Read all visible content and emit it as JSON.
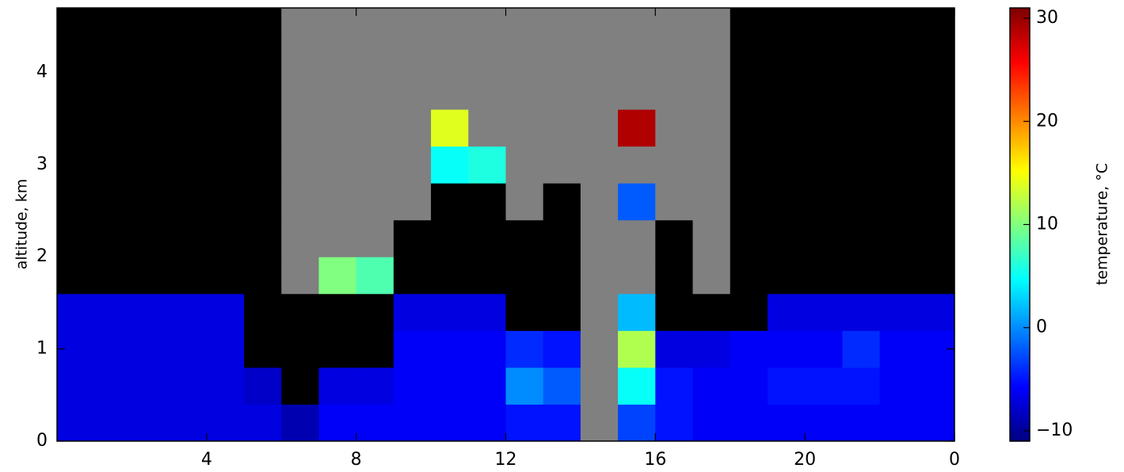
{
  "chart_data": {
    "type": "heatmap",
    "ylabel": "altitude, km",
    "xlim": [
      0,
      24
    ],
    "ylim": [
      0,
      4.7
    ],
    "xticks": [
      4,
      8,
      12,
      16,
      20,
      {
        "value": 24,
        "label": "0"
      }
    ],
    "yticks": [
      0,
      1,
      2,
      3,
      4
    ],
    "x_edges": [
      0,
      1,
      2,
      3,
      4,
      5,
      6,
      7,
      8,
      9,
      10,
      11,
      12,
      13,
      14,
      15,
      16,
      17,
      18,
      19,
      20,
      21,
      22,
      23,
      24
    ],
    "y_edges": [
      0,
      0.4,
      0.8,
      1.2,
      1.6,
      2.0,
      2.4,
      2.8,
      3.2,
      3.6,
      4.0,
      4.4,
      4.7
    ],
    "z": [
      [
        -7,
        -7,
        -7,
        -7,
        -7,
        -7,
        -9,
        -6,
        -6,
        -6,
        -6,
        -6,
        -5,
        -5,
        null,
        -3,
        -5,
        -6,
        -6,
        -6,
        -6,
        -6,
        -6,
        -6
      ],
      [
        -7,
        -7,
        -7,
        -7,
        -7,
        -8,
        -20,
        -7,
        -7,
        -6,
        -6,
        -6,
        0,
        -2,
        null,
        5,
        -5,
        -6,
        -6,
        -5,
        -5,
        -5,
        -6,
        -6
      ],
      [
        -7,
        -7,
        -7,
        -7,
        -7,
        -20,
        -20,
        -20,
        -20,
        -6,
        -6,
        -6,
        -4,
        -5,
        null,
        12,
        -7,
        -7,
        -6,
        -6,
        -6,
        -4,
        -6,
        -6
      ],
      [
        -7,
        -7,
        -7,
        -7,
        -7,
        -20,
        -20,
        -20,
        -20,
        -7,
        -7,
        -7,
        -20,
        -20,
        null,
        2,
        -20,
        -20,
        -20,
        -7,
        -7,
        -7,
        -7,
        -7
      ],
      [
        -20,
        -20,
        -20,
        -20,
        -20,
        -20,
        null,
        10,
        8,
        -20,
        -20,
        -20,
        -20,
        -20,
        null,
        null,
        -20,
        null,
        -20,
        -20,
        -20,
        -20,
        -20,
        -20
      ],
      [
        -20,
        -20,
        -20,
        -20,
        -20,
        -20,
        null,
        null,
        null,
        -20,
        -20,
        -20,
        -20,
        -20,
        null,
        null,
        -20,
        null,
        -20,
        -20,
        -20,
        -20,
        -20,
        -20
      ],
      [
        -20,
        -20,
        -20,
        -20,
        -20,
        -20,
        null,
        null,
        null,
        null,
        -20,
        -20,
        null,
        -20,
        null,
        -2,
        null,
        null,
        -20,
        -20,
        -20,
        -20,
        -20,
        -20
      ],
      [
        -20,
        -20,
        -20,
        -20,
        -20,
        -20,
        null,
        null,
        null,
        null,
        5,
        6,
        null,
        null,
        null,
        null,
        null,
        null,
        -20,
        -20,
        -20,
        -20,
        -20,
        -20
      ],
      [
        -20,
        -20,
        -20,
        -20,
        -20,
        -20,
        null,
        null,
        null,
        null,
        14,
        null,
        null,
        null,
        null,
        29,
        null,
        null,
        -20,
        -20,
        -20,
        -20,
        -20,
        -20
      ],
      [
        -20,
        -20,
        -20,
        -20,
        -20,
        -20,
        null,
        null,
        null,
        null,
        null,
        null,
        null,
        null,
        null,
        null,
        null,
        null,
        -20,
        -20,
        -20,
        -20,
        -20,
        -20
      ],
      [
        -20,
        -20,
        -20,
        -20,
        -20,
        -20,
        null,
        null,
        null,
        null,
        null,
        null,
        null,
        null,
        null,
        null,
        null,
        null,
        -20,
        -20,
        -20,
        -20,
        -20,
        -20
      ],
      [
        -20,
        -20,
        -20,
        -20,
        -20,
        -20,
        null,
        null,
        null,
        null,
        null,
        null,
        null,
        null,
        null,
        null,
        null,
        null,
        -20,
        -20,
        -20,
        -20,
        -20,
        -20
      ]
    ],
    "cmap": "jet",
    "under_color": "#000000",
    "missing_color": "#808080",
    "colorbar": {
      "label": "temperature, °C",
      "lim": [
        -11,
        31
      ],
      "ticks": [
        {
          "value": -10,
          "label": "−10"
        },
        0,
        10,
        20,
        30
      ]
    }
  }
}
